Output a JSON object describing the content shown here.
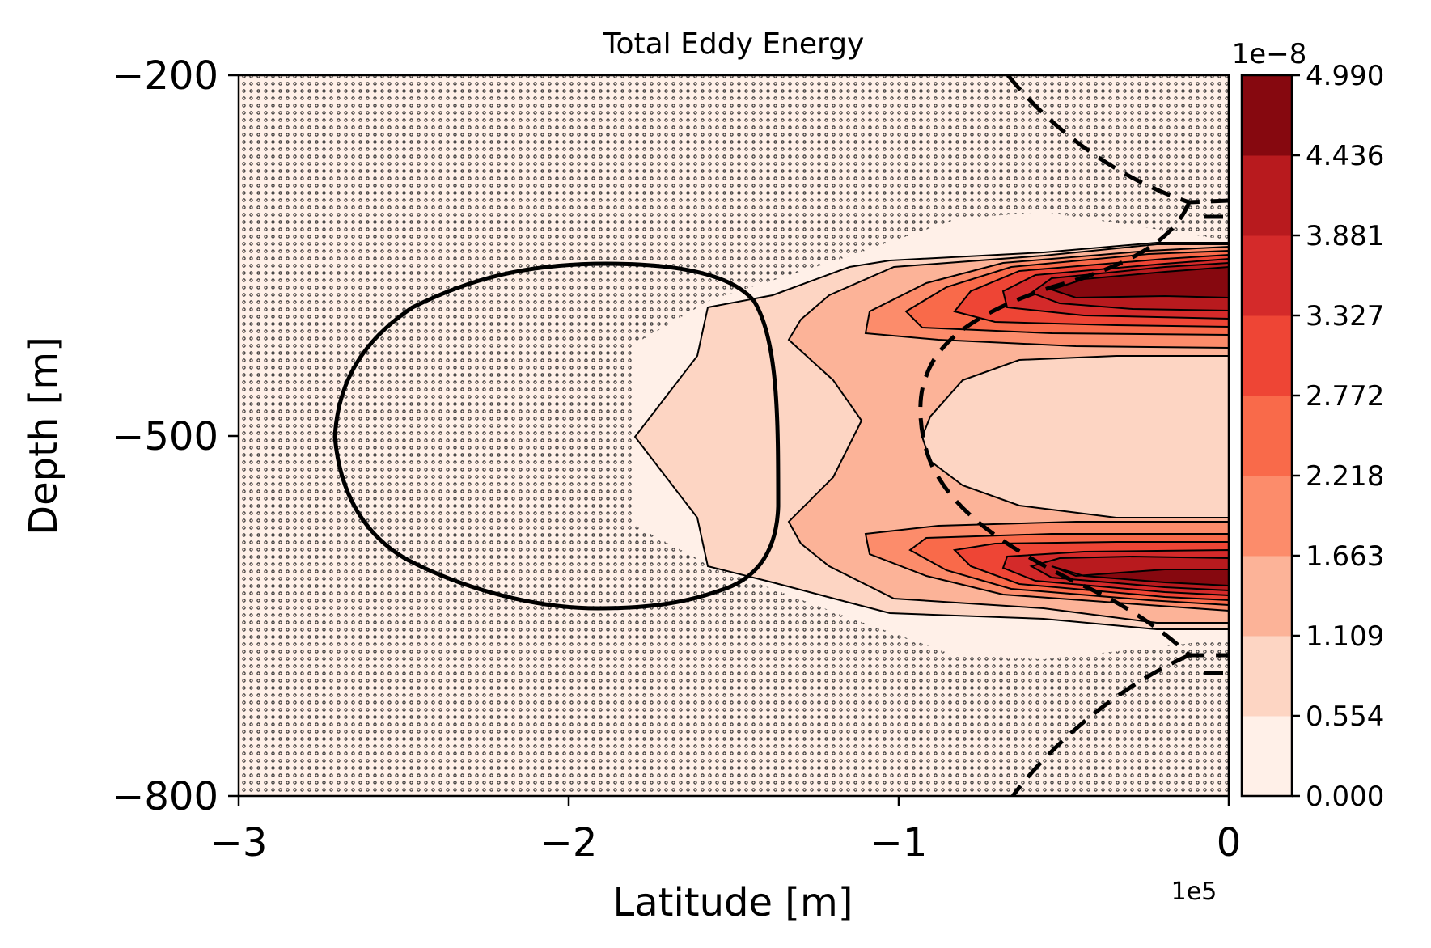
{
  "chart_data": {
    "type": "contourf",
    "title": "Total Eddy Energy",
    "xlabel": "Latitude [m]",
    "ylabel": "Depth [m]",
    "x_offset_text": "1e5",
    "xlim": [
      -3,
      0
    ],
    "ylim": [
      -800,
      -200
    ],
    "x_ticks": [
      "−3",
      "−2",
      "−1",
      "0"
    ],
    "y_ticks": [
      "−200",
      "−500",
      "−800"
    ],
    "colorbar": {
      "offset_text": "1e−8",
      "levels": [
        "0.000",
        "0.554",
        "1.109",
        "1.663",
        "2.218",
        "2.772",
        "3.327",
        "3.881",
        "4.436",
        "4.990"
      ],
      "colors": [
        "#fff0e8",
        "#fdd5c3",
        "#fcb398",
        "#fc8c6b",
        "#f96a4a",
        "#ee4535",
        "#d42a2a",
        "#b81a1e",
        "#86080f"
      ]
    },
    "hatch": "dots over low-energy region",
    "contours": [
      "solid closed contour at left",
      "dashed contour on right"
    ]
  }
}
